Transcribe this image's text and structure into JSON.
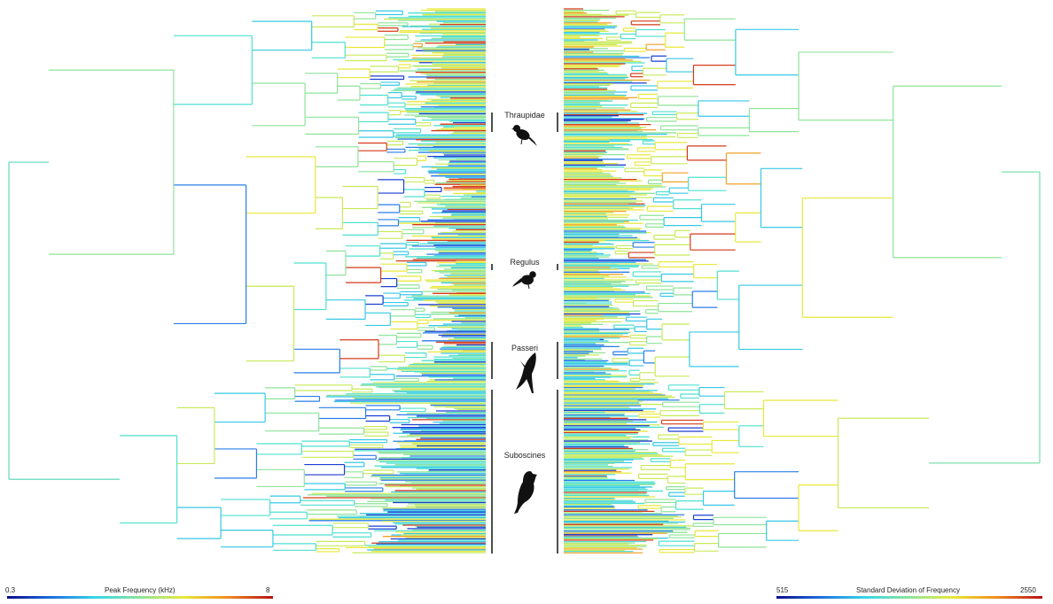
{
  "clades": [
    {
      "name": "Thraupidae",
      "icon": "tanager-silhouette-icon"
    },
    {
      "name": "Regulus",
      "icon": "kinglet-silhouette-icon"
    },
    {
      "name": "Passeri",
      "icon": "raptor-silhouette-icon"
    },
    {
      "name": "Suboscines",
      "icon": "flycatcher-silhouette-icon"
    }
  ],
  "legend_left": {
    "min": "0.3",
    "max": "8",
    "title": "Peak Frequency (kHz)"
  },
  "legend_right": {
    "min": "515",
    "max": "2550",
    "title": "Standard Deviation of Frequency"
  },
  "colors": {
    "low": "#0b0b8a",
    "blue": "#1f6fe0",
    "cyan": "#37d6e8",
    "green": "#8fe39a",
    "yellow": "#e8e83a",
    "orange": "#f08a1e",
    "high": "#b5101a",
    "bracket": "#222222",
    "silhouette": "#111111"
  }
}
